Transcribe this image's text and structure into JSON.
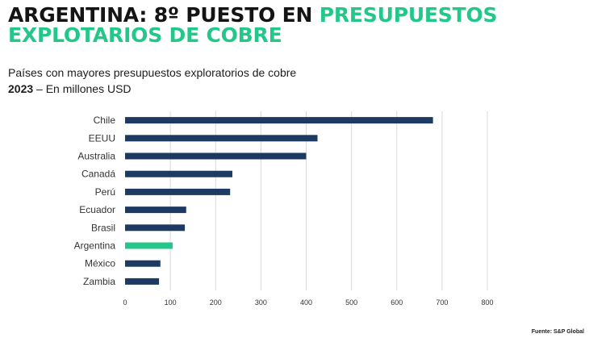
{
  "headline": {
    "line1_dark": "ARGENTINA: 8º PUESTO EN ",
    "line1_accent": "PRESUPUESTOS",
    "line2_accent": "EXPLOTARIOS DE COBRE"
  },
  "subtitle": {
    "line1": "Países con mayores presupuestos exploratorios de cobre",
    "line2_bold": "2023",
    "line2_rest": " – En millones USD"
  },
  "source": "Fuente: S&P Global",
  "colors": {
    "bar": "#1d3a63",
    "highlight": "#24c78a",
    "grid": "#d9d9d9",
    "accent": "#24c78a"
  },
  "chart_data": {
    "type": "bar",
    "orientation": "horizontal",
    "categories": [
      "Chile",
      "EEUU",
      "Australia",
      "Canadá",
      "Perú",
      "Ecuador",
      "Brasil",
      "Argentina",
      "México",
      "Zambia"
    ],
    "values": [
      680,
      425,
      400,
      237,
      232,
      135,
      132,
      105,
      78,
      75
    ],
    "highlight": "Argentina",
    "xlim": [
      0,
      800
    ],
    "xticks": [
      0,
      100,
      200,
      300,
      400,
      500,
      600,
      700,
      800
    ],
    "grid": true,
    "title": "",
    "xlabel": "",
    "ylabel": ""
  }
}
